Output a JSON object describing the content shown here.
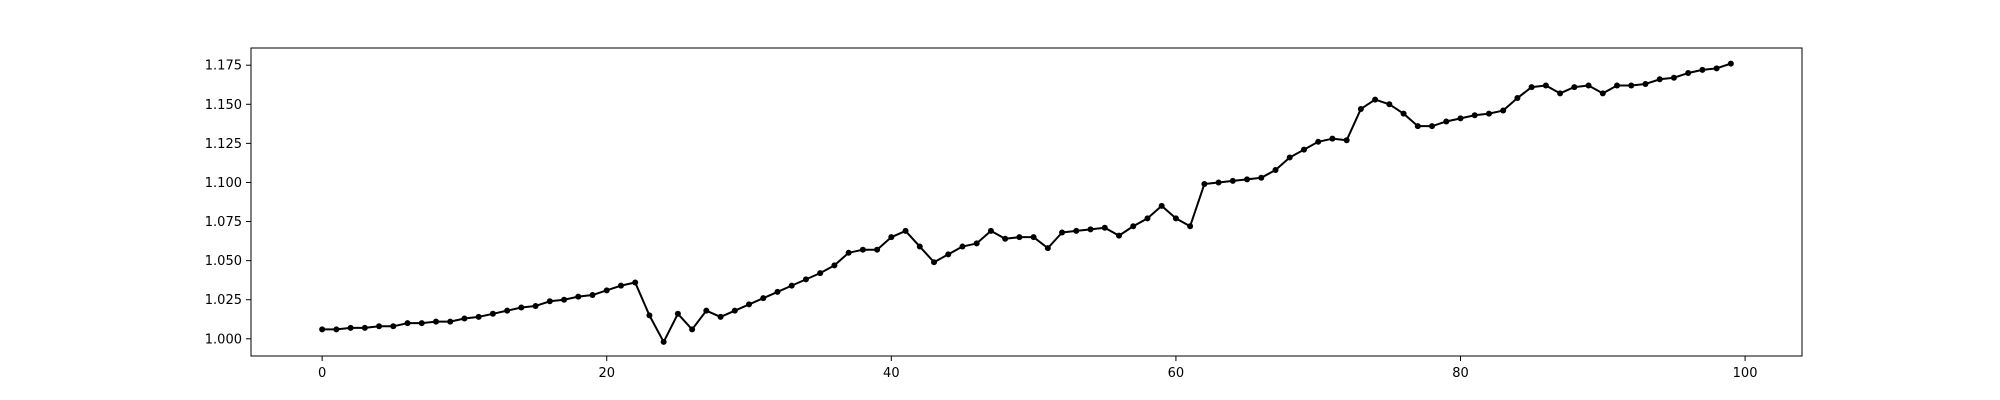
{
  "chart_data": {
    "type": "line",
    "title": "",
    "xlabel": "",
    "ylabel": "",
    "xlim": [
      -5,
      104
    ],
    "ylim": [
      0.989,
      1.186
    ],
    "xticks": [
      0,
      20,
      40,
      60,
      80,
      100
    ],
    "xtick_labels": [
      "0",
      "20",
      "40",
      "60",
      "80",
      "100"
    ],
    "yticks": [
      1.0,
      1.025,
      1.05,
      1.075,
      1.1,
      1.125,
      1.15,
      1.175
    ],
    "ytick_labels": [
      "1.000",
      "1.025",
      "1.050",
      "1.075",
      "1.100",
      "1.125",
      "1.150",
      "1.175"
    ],
    "grid": false,
    "legend": null,
    "series": [
      {
        "color": "#000000",
        "marker": "dot",
        "x": [
          0,
          1,
          2,
          3,
          4,
          5,
          6,
          7,
          8,
          9,
          10,
          11,
          12,
          13,
          14,
          15,
          16,
          17,
          18,
          19,
          20,
          21,
          22,
          23,
          24,
          25,
          26,
          27,
          28,
          29,
          30,
          31,
          32,
          33,
          34,
          35,
          36,
          37,
          38,
          39,
          40,
          41,
          42,
          43,
          44,
          45,
          46,
          47,
          48,
          49,
          50,
          51,
          52,
          53,
          54,
          55,
          56,
          57,
          58,
          59,
          60,
          61,
          62,
          63,
          64,
          65,
          66,
          67,
          68,
          69,
          70,
          71,
          72,
          73,
          74,
          75,
          76,
          77,
          78,
          79,
          80,
          81,
          82,
          83,
          84,
          85,
          86,
          87,
          88,
          89,
          90,
          91,
          92,
          93,
          94,
          95,
          96,
          97,
          98,
          99
        ],
        "y": [
          1.006,
          1.006,
          1.007,
          1.007,
          1.008,
          1.008,
          1.01,
          1.01,
          1.011,
          1.011,
          1.013,
          1.014,
          1.016,
          1.018,
          1.02,
          1.021,
          1.024,
          1.025,
          1.027,
          1.028,
          1.031,
          1.034,
          1.036,
          1.015,
          0.998,
          1.016,
          1.006,
          1.018,
          1.014,
          1.018,
          1.022,
          1.026,
          1.03,
          1.034,
          1.038,
          1.042,
          1.047,
          1.055,
          1.057,
          1.057,
          1.065,
          1.069,
          1.059,
          1.049,
          1.054,
          1.059,
          1.061,
          1.069,
          1.064,
          1.065,
          1.065,
          1.058,
          1.068,
          1.069,
          1.07,
          1.071,
          1.066,
          1.072,
          1.077,
          1.085,
          1.077,
          1.072,
          1.099,
          1.1,
          1.101,
          1.102,
          1.103,
          1.108,
          1.116,
          1.121,
          1.126,
          1.128,
          1.127,
          1.147,
          1.153,
          1.15,
          1.144,
          1.136,
          1.136,
          1.139,
          1.141,
          1.143,
          1.144,
          1.146,
          1.154,
          1.161,
          1.162,
          1.157,
          1.161,
          1.162,
          1.157,
          1.162,
          1.162,
          1.163,
          1.166,
          1.167,
          1.17,
          1.172,
          1.173,
          1.176
        ]
      }
    ]
  }
}
